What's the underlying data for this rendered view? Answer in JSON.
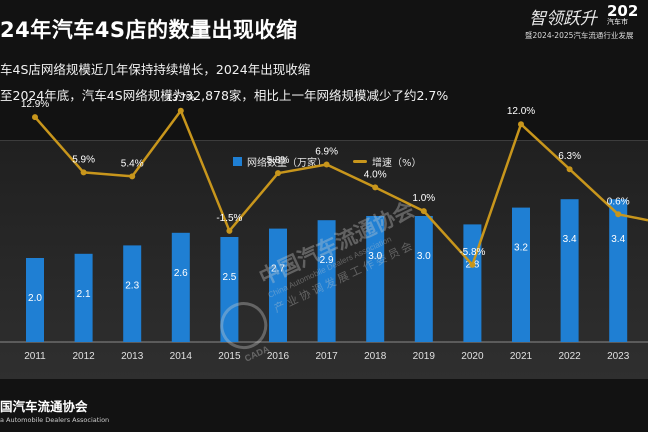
{
  "header": {
    "title": "24年汽车4S店的数量出现收缩",
    "brand_slogan": "智领跃升",
    "brand_year": "202",
    "brand_sub": "汽车市",
    "brand_line": "暨2024-2025汽车流通行业发展"
  },
  "bullets": [
    "车4S店网络规模近几年保持持续增长，2024年出现收缩",
    "至2024年底，汽车4S网络规模为32,878家，相比上一年网络规模减少了约2.7%"
  ],
  "watermark": {
    "name": "中国汽车流通协会",
    "en": "China Automobile Dealers Association",
    "sub": "产业协调发展工作委员会",
    "logo": "CADA"
  },
  "footer": {
    "name": "国汽车流通协会",
    "en": "a Automobile Dealers Association"
  },
  "colors": {
    "bar": "#1f7fd3",
    "line": "#c8961c",
    "text": "#ffffff"
  },
  "chart_data": {
    "type": "bar",
    "categories": [
      "2011",
      "2012",
      "2013",
      "2014",
      "2015",
      "2016",
      "2017",
      "2018",
      "2019",
      "2020",
      "2021",
      "2022",
      "2023"
    ],
    "series": [
      {
        "name": "网络数量（万家）",
        "type": "bar",
        "values": [
          2.0,
          2.1,
          2.3,
          2.6,
          2.5,
          2.7,
          2.9,
          3.0,
          3.0,
          2.8,
          3.2,
          3.4,
          3.4
        ]
      },
      {
        "name": "增速（%）",
        "type": "line",
        "values": [
          12.9,
          5.9,
          5.4,
          13.7,
          -1.5,
          5.8,
          6.9,
          4.0,
          1.0,
          -5.8,
          12.0,
          6.3,
          0.6
        ]
      }
    ],
    "data_labels": {
      "bars": [
        "2.0",
        "2.1",
        "2.3",
        "2.6",
        "2.5",
        "2.7",
        "2.9",
        "3.0",
        "3.0",
        "2.8",
        "3.2",
        "3.4",
        "3.4"
      ],
      "line": [
        "12.9%",
        "5.9%",
        "5.4%",
        "13.7%",
        "-1.5%",
        "5.8%",
        "6.9%",
        "4.0%",
        "1.0%",
        "-5.8%",
        "12.0%",
        "6.3%",
        "0.6%"
      ]
    },
    "bar_axis_range": [
      0,
      3.6
    ],
    "line_axis_range": [
      -15,
      15
    ],
    "legend": "top-center",
    "grid": false
  }
}
